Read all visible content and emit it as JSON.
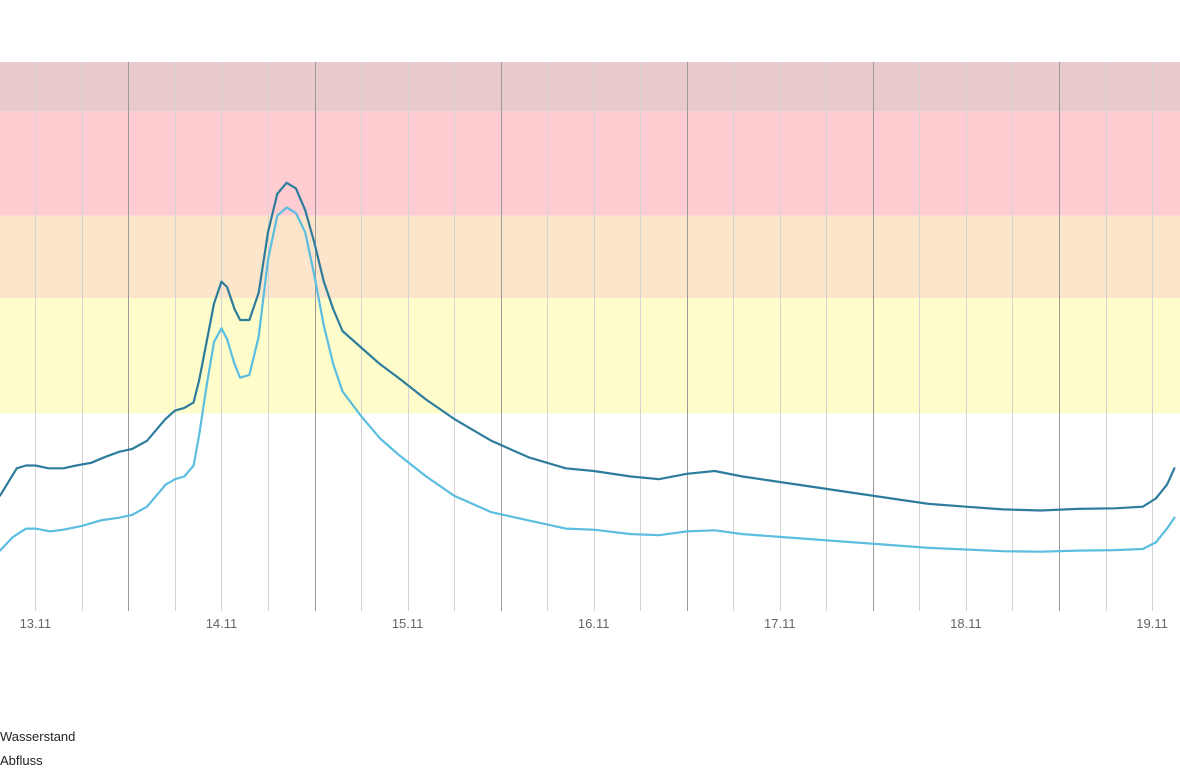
{
  "chart_data": {
    "type": "line",
    "x_unit": "days since 13.11 00:00",
    "x_ticks": [
      {
        "label": "13.11",
        "x": 0.0
      },
      {
        "label": "14.11",
        "x": 1.0
      },
      {
        "label": "15.11",
        "x": 2.0
      },
      {
        "label": "16.11",
        "x": 3.0
      },
      {
        "label": "17.11",
        "x": 4.0
      },
      {
        "label": "18.11",
        "x": 5.0
      },
      {
        "label": "19.11",
        "x": 6.0
      }
    ],
    "xlim": [
      -0.19,
      6.15
    ],
    "ylim": [
      0,
      100
    ],
    "y_unit": "relative level (0 = chart bottom, 100 = chart top)",
    "grid": true,
    "legend_placement": "bottom-left",
    "bands": [
      {
        "name": "band-4",
        "from": 91,
        "to": 100,
        "color": "#e8cacd"
      },
      {
        "name": "band-3",
        "from": 72,
        "to": 91,
        "color": "#ffccd2"
      },
      {
        "name": "band-2",
        "from": 57,
        "to": 72,
        "color": "#fde5cb"
      },
      {
        "name": "band-1",
        "from": 36,
        "to": 57,
        "color": "#fdfcca"
      }
    ],
    "series": [
      {
        "name": "Wasserstand",
        "color": "#2e7c9c",
        "points": [
          [
            -0.19,
            21
          ],
          [
            -0.1,
            26
          ],
          [
            -0.05,
            26.5
          ],
          [
            0.0,
            26.5
          ],
          [
            0.07,
            26
          ],
          [
            0.15,
            26
          ],
          [
            0.22,
            26.5
          ],
          [
            0.3,
            27
          ],
          [
            0.37,
            28
          ],
          [
            0.45,
            29
          ],
          [
            0.52,
            29.5
          ],
          [
            0.6,
            31
          ],
          [
            0.65,
            33
          ],
          [
            0.7,
            35
          ],
          [
            0.75,
            36.5
          ],
          [
            0.8,
            37
          ],
          [
            0.85,
            38
          ],
          [
            0.88,
            42
          ],
          [
            0.92,
            49
          ],
          [
            0.96,
            56
          ],
          [
            1.0,
            60
          ],
          [
            1.03,
            59
          ],
          [
            1.07,
            55
          ],
          [
            1.1,
            53
          ],
          [
            1.15,
            53
          ],
          [
            1.2,
            58
          ],
          [
            1.25,
            69
          ],
          [
            1.3,
            76
          ],
          [
            1.35,
            78
          ],
          [
            1.4,
            77
          ],
          [
            1.45,
            73
          ],
          [
            1.5,
            67
          ],
          [
            1.55,
            60
          ],
          [
            1.6,
            55
          ],
          [
            1.65,
            51
          ],
          [
            1.75,
            48
          ],
          [
            1.85,
            45
          ],
          [
            1.95,
            42.5
          ],
          [
            2.1,
            38.5
          ],
          [
            2.25,
            35
          ],
          [
            2.45,
            31
          ],
          [
            2.65,
            28
          ],
          [
            2.85,
            26
          ],
          [
            3.0,
            25.5
          ],
          [
            3.2,
            24.5
          ],
          [
            3.35,
            24
          ],
          [
            3.5,
            25
          ],
          [
            3.65,
            25.5
          ],
          [
            3.8,
            24.5
          ],
          [
            4.0,
            23.5
          ],
          [
            4.2,
            22.5
          ],
          [
            4.4,
            21.5
          ],
          [
            4.6,
            20.5
          ],
          [
            4.8,
            19.5
          ],
          [
            5.0,
            19
          ],
          [
            5.2,
            18.5
          ],
          [
            5.4,
            18.3
          ],
          [
            5.6,
            18.6
          ],
          [
            5.8,
            18.7
          ],
          [
            5.95,
            19
          ],
          [
            6.02,
            20.5
          ],
          [
            6.08,
            23
          ],
          [
            6.12,
            26
          ]
        ]
      },
      {
        "name": "Abfluss",
        "color": "#5bbde0",
        "points": [
          [
            -0.19,
            11
          ],
          [
            -0.12,
            13.5
          ],
          [
            -0.05,
            15
          ],
          [
            0.0,
            15
          ],
          [
            0.08,
            14.5
          ],
          [
            0.15,
            14.8
          ],
          [
            0.25,
            15.5
          ],
          [
            0.35,
            16.5
          ],
          [
            0.45,
            17
          ],
          [
            0.52,
            17.5
          ],
          [
            0.6,
            19
          ],
          [
            0.65,
            21
          ],
          [
            0.7,
            23
          ],
          [
            0.75,
            24
          ],
          [
            0.8,
            24.5
          ],
          [
            0.85,
            26.5
          ],
          [
            0.88,
            32
          ],
          [
            0.92,
            41
          ],
          [
            0.96,
            49
          ],
          [
            1.0,
            51.5
          ],
          [
            1.03,
            49.5
          ],
          [
            1.07,
            45
          ],
          [
            1.1,
            42.5
          ],
          [
            1.15,
            43
          ],
          [
            1.2,
            50
          ],
          [
            1.25,
            64
          ],
          [
            1.3,
            72
          ],
          [
            1.35,
            73.5
          ],
          [
            1.4,
            72.5
          ],
          [
            1.45,
            69
          ],
          [
            1.5,
            61
          ],
          [
            1.55,
            52
          ],
          [
            1.6,
            45
          ],
          [
            1.65,
            40
          ],
          [
            1.75,
            35.5
          ],
          [
            1.85,
            31.5
          ],
          [
            1.95,
            28.5
          ],
          [
            2.1,
            24.5
          ],
          [
            2.25,
            21
          ],
          [
            2.45,
            18
          ],
          [
            2.65,
            16.5
          ],
          [
            2.85,
            15
          ],
          [
            3.0,
            14.8
          ],
          [
            3.2,
            14
          ],
          [
            3.35,
            13.8
          ],
          [
            3.5,
            14.5
          ],
          [
            3.65,
            14.7
          ],
          [
            3.8,
            14
          ],
          [
            4.0,
            13.5
          ],
          [
            4.2,
            13
          ],
          [
            4.4,
            12.5
          ],
          [
            4.6,
            12
          ],
          [
            4.8,
            11.5
          ],
          [
            5.0,
            11.2
          ],
          [
            5.2,
            10.9
          ],
          [
            5.4,
            10.8
          ],
          [
            5.6,
            11
          ],
          [
            5.8,
            11.1
          ],
          [
            5.95,
            11.3
          ],
          [
            6.02,
            12.5
          ],
          [
            6.08,
            15
          ],
          [
            6.12,
            17
          ]
        ]
      }
    ]
  },
  "legend": {
    "items": [
      {
        "label": "Wasserstand"
      },
      {
        "label": "Abfluss"
      }
    ]
  }
}
